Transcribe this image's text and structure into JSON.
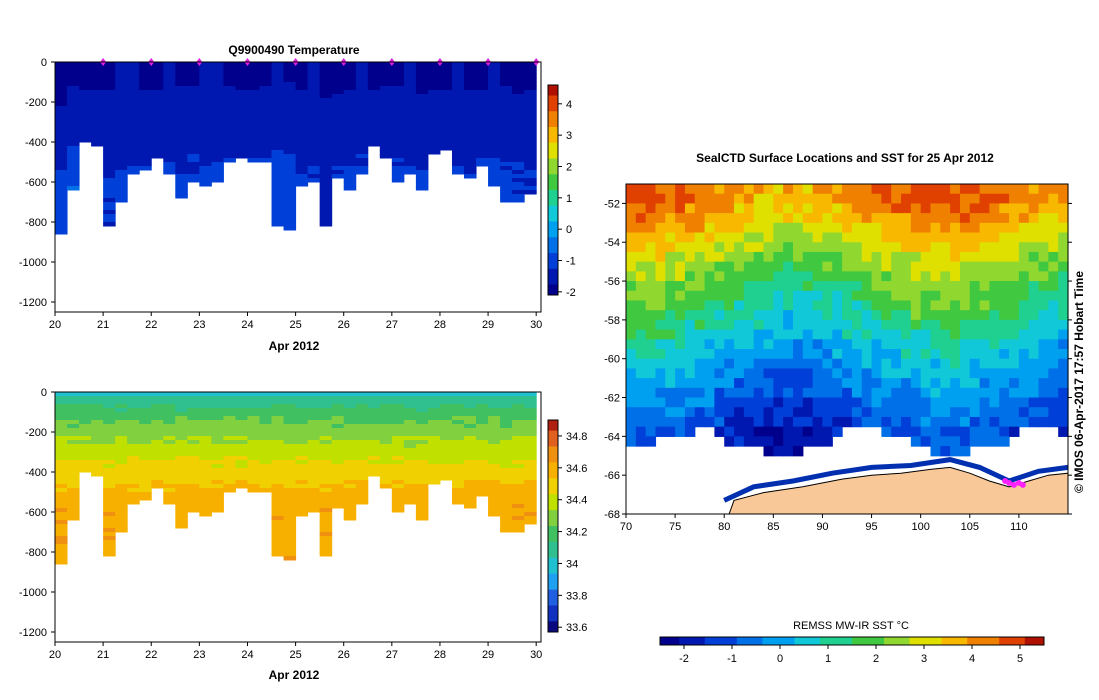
{
  "colors": {
    "temp_scale": [
      "#00008c",
      "#0018b0",
      "#0040d8",
      "#0070e8",
      "#00a0f0",
      "#10c8d8",
      "#20d090",
      "#40c840",
      "#90d830",
      "#e0e000",
      "#f8b800",
      "#f08000",
      "#e04000",
      "#b01000"
    ],
    "sal_scale": [
      "#0a0a80",
      "#1030c0",
      "#2060e0",
      "#20a0f0",
      "#20c0d0",
      "#30c090",
      "#40c060",
      "#80d040",
      "#c0e000",
      "#f0d000",
      "#f8b000",
      "#f09010",
      "#e06020",
      "#b02010"
    ],
    "sea_white": "#ffffff",
    "land": "#f8c898"
  },
  "chart_data": [
    {
      "type": "heatmap",
      "name": "temperature-section",
      "title": "Q9900490  Temperature",
      "xlabel": "Apr 2012",
      "ylabel": "",
      "xlim": [
        20,
        30.1
      ],
      "ylim": [
        -1250,
        0
      ],
      "x_ticks": [
        20,
        21,
        22,
        23,
        24,
        25,
        26,
        27,
        28,
        29,
        30
      ],
      "y_ticks": [
        0,
        -200,
        -400,
        -600,
        -800,
        -1000,
        -1200
      ],
      "colorbar": {
        "min": -2.1,
        "max": 4.6,
        "ticks": [
          4,
          3,
          2,
          1,
          0,
          -1,
          -2
        ]
      },
      "profiles": [
        {
          "x": 20.0,
          "depth": -860,
          "surface": -2.0,
          "deep": -1.2
        },
        {
          "x": 20.25,
          "depth": -640,
          "surface": -1.9,
          "deep": -0.9
        },
        {
          "x": 20.5,
          "depth": -400,
          "surface": -1.9,
          "deep": -1.1
        },
        {
          "x": 20.75,
          "depth": -420,
          "surface": -1.9,
          "deep": -1.2
        },
        {
          "x": 21.0,
          "depth": -820,
          "surface": -1.9,
          "deep": -1.3
        },
        {
          "x": 21.25,
          "depth": -700,
          "surface": -1.8,
          "deep": -1.1
        },
        {
          "x": 21.5,
          "depth": -560,
          "surface": -1.8,
          "deep": -1.2
        },
        {
          "x": 21.75,
          "depth": -540,
          "surface": -1.9,
          "deep": -1.1
        },
        {
          "x": 22.0,
          "depth": -480,
          "surface": -1.9,
          "deep": -1.2
        },
        {
          "x": 22.25,
          "depth": -560,
          "surface": -1.8,
          "deep": -1.1
        },
        {
          "x": 22.5,
          "depth": -680,
          "surface": -1.9,
          "deep": -1.2
        },
        {
          "x": 22.75,
          "depth": -600,
          "surface": -1.9,
          "deep": -1.1
        },
        {
          "x": 23.0,
          "depth": -620,
          "surface": -1.8,
          "deep": -1.2
        },
        {
          "x": 23.25,
          "depth": -600,
          "surface": -1.8,
          "deep": -1.2
        },
        {
          "x": 23.5,
          "depth": -500,
          "surface": -1.9,
          "deep": -1.1
        },
        {
          "x": 23.75,
          "depth": -480,
          "surface": -1.9,
          "deep": -1.3
        },
        {
          "x": 24.0,
          "depth": -500,
          "surface": -1.9,
          "deep": -1.2
        },
        {
          "x": 24.25,
          "depth": -500,
          "surface": -1.9,
          "deep": -1.2
        },
        {
          "x": 24.5,
          "depth": -820,
          "surface": -1.8,
          "deep": -1.1
        },
        {
          "x": 24.75,
          "depth": -840,
          "surface": -1.9,
          "deep": -1.0
        },
        {
          "x": 25.0,
          "depth": -620,
          "surface": -1.9,
          "deep": -1.2
        },
        {
          "x": 25.25,
          "depth": -600,
          "surface": -1.8,
          "deep": -1.2
        },
        {
          "x": 25.5,
          "depth": -820,
          "surface": -1.9,
          "deep": -1.5
        },
        {
          "x": 25.75,
          "depth": -580,
          "surface": -1.9,
          "deep": -1.2
        },
        {
          "x": 26.0,
          "depth": -640,
          "surface": -1.9,
          "deep": -1.2
        },
        {
          "x": 26.25,
          "depth": -560,
          "surface": -1.8,
          "deep": -1.1
        },
        {
          "x": 26.5,
          "depth": -420,
          "surface": -1.9,
          "deep": -1.3
        },
        {
          "x": 26.75,
          "depth": -480,
          "surface": -1.9,
          "deep": -1.2
        },
        {
          "x": 27.0,
          "depth": -600,
          "surface": -1.9,
          "deep": -1.1
        },
        {
          "x": 27.25,
          "depth": -560,
          "surface": -1.8,
          "deep": -1.2
        },
        {
          "x": 27.5,
          "depth": -640,
          "surface": -1.9,
          "deep": -1.2
        },
        {
          "x": 27.75,
          "depth": -460,
          "surface": -1.9,
          "deep": -1.2
        },
        {
          "x": 28.0,
          "depth": -440,
          "surface": -1.9,
          "deep": -1.3
        },
        {
          "x": 28.25,
          "depth": -560,
          "surface": -1.8,
          "deep": -1.2
        },
        {
          "x": 28.5,
          "depth": -580,
          "surface": -1.9,
          "deep": -1.2
        },
        {
          "x": 28.75,
          "depth": -520,
          "surface": -1.9,
          "deep": -1.2
        },
        {
          "x": 29.0,
          "depth": -620,
          "surface": -1.8,
          "deep": -1.1
        },
        {
          "x": 29.25,
          "depth": -700,
          "surface": -1.9,
          "deep": -1.2
        },
        {
          "x": 29.5,
          "depth": -700,
          "surface": -1.9,
          "deep": -1.2
        },
        {
          "x": 29.75,
          "depth": -660,
          "surface": -1.9,
          "deep": -1.3
        }
      ],
      "surface_markers": [
        21,
        22,
        23,
        24,
        25,
        26,
        27,
        28,
        29,
        30
      ]
    },
    {
      "type": "heatmap",
      "name": "salinity-section",
      "title": "",
      "xlabel": "Apr 2012",
      "ylabel": "",
      "xlim": [
        20,
        30.1
      ],
      "ylim": [
        -1250,
        0
      ],
      "x_ticks": [
        20,
        21,
        22,
        23,
        24,
        25,
        26,
        27,
        28,
        29,
        30
      ],
      "y_ticks": [
        0,
        -200,
        -400,
        -600,
        -800,
        -1000,
        -1200
      ],
      "colorbar": {
        "min": 33.57,
        "max": 34.9,
        "ticks": [
          34.8,
          34.6,
          34.4,
          34.2,
          34,
          33.8,
          33.6
        ]
      },
      "surface_value": 34.0,
      "deep_value": 34.62
    },
    {
      "type": "heatmap",
      "name": "sst-map",
      "title": "SealCTD Surface Locations and SST for 25 Apr 2012",
      "xlabel": "",
      "ylabel": "",
      "xlim": [
        70,
        115
      ],
      "ylim": [
        -68,
        -51
      ],
      "x_ticks": [
        70,
        75,
        80,
        85,
        90,
        95,
        100,
        105,
        110
      ],
      "y_ticks": [
        -52,
        -54,
        -56,
        -58,
        -60,
        -62,
        -64,
        -66,
        -68
      ],
      "colorbar": {
        "label": "REMSS MW-IR SST °C",
        "min": -2.5,
        "max": 5.5,
        "ticks": [
          -2,
          -1,
          0,
          1,
          2,
          3,
          4,
          5
        ]
      },
      "sst_bands": [
        {
          "lat": -51.5,
          "value": 4.2
        },
        {
          "lat": -53,
          "value": 3.4
        },
        {
          "lat": -54.5,
          "value": 2.6
        },
        {
          "lat": -56,
          "value": 1.8
        },
        {
          "lat": -57.5,
          "value": 1.2
        },
        {
          "lat": -59,
          "value": 0.5
        },
        {
          "lat": -60.5,
          "value": -0.2
        },
        {
          "lat": -62,
          "value": -0.8
        },
        {
          "lat": -63.5,
          "value": -1.4
        }
      ],
      "track_locations": [
        {
          "lon": 108.6,
          "lat": -66.3
        },
        {
          "lon": 109.0,
          "lat": -66.4
        },
        {
          "lon": 109.5,
          "lat": -66.5
        },
        {
          "lon": 110.0,
          "lat": -66.4
        },
        {
          "lon": 110.4,
          "lat": -66.5
        }
      ],
      "side_label": "© IMOS 06-Apr-2017 17:57 Hobart Time"
    }
  ]
}
